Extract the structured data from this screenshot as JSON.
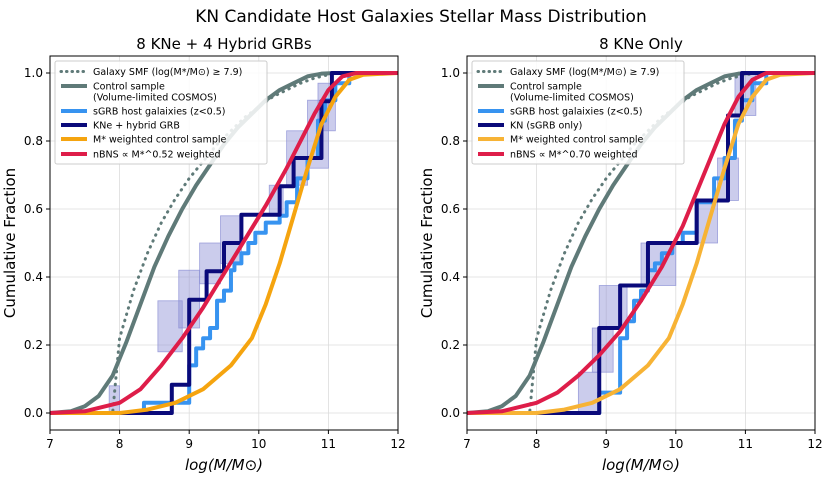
{
  "figure_title": "KN Candidate Host Galaxies Stellar Mass Distribution",
  "chart_data": [
    {
      "type": "line",
      "title": "8 KNe + 4 Hybrid GRBs",
      "xlabel": "log(M/M⊙)",
      "ylabel": "Cumulative Fraction",
      "xlim": [
        7,
        12
      ],
      "ylim": [
        -0.05,
        1.05
      ],
      "xticks": [
        "7",
        "8",
        "9",
        "10",
        "11",
        "12"
      ],
      "yticks": [
        "0.0",
        "0.2",
        "0.4",
        "0.6",
        "0.8",
        "1.0"
      ],
      "grid": true,
      "legend_position": "upper-left",
      "series": [
        {
          "name": "Galaxy SMF (log(M*/M⊙) ≥ 7.9)",
          "color": "#5f7a78",
          "style": "dotted",
          "kind": "line",
          "x": [
            7.9,
            8.0,
            8.2,
            8.4,
            8.6,
            8.8,
            9.0,
            9.2,
            9.4,
            9.6,
            9.8,
            10.0,
            10.2,
            10.4,
            10.6,
            10.8,
            11.0,
            11.2,
            12.0
          ],
          "y": [
            0.0,
            0.22,
            0.36,
            0.47,
            0.56,
            0.63,
            0.69,
            0.74,
            0.79,
            0.83,
            0.87,
            0.9,
            0.93,
            0.95,
            0.97,
            0.985,
            0.995,
            1.0,
            1.0
          ]
        },
        {
          "name": "Control sample (Volume-limited COSMOS)",
          "color": "#5f7a78",
          "style": "solid",
          "kind": "line",
          "x": [
            7.0,
            7.3,
            7.5,
            7.7,
            7.9,
            8.1,
            8.3,
            8.5,
            8.7,
            8.9,
            9.1,
            9.3,
            9.5,
            9.7,
            9.9,
            10.1,
            10.3,
            10.5,
            10.7,
            10.9,
            11.1,
            12.0
          ],
          "y": [
            0.0,
            0.005,
            0.02,
            0.05,
            0.11,
            0.21,
            0.32,
            0.43,
            0.52,
            0.6,
            0.67,
            0.73,
            0.79,
            0.84,
            0.88,
            0.92,
            0.95,
            0.97,
            0.99,
            0.998,
            1.0,
            1.0
          ]
        },
        {
          "name": "sGRB host galaixies (z<0.5)",
          "color": "#3793f0",
          "style": "solid",
          "kind": "step",
          "x": [
            8.0,
            8.35,
            8.8,
            9.0,
            9.1,
            9.2,
            9.3,
            9.4,
            9.5,
            9.6,
            9.65,
            9.75,
            9.85,
            9.95,
            10.1,
            10.3,
            10.4,
            10.55,
            10.7,
            10.85,
            10.95,
            11.1,
            11.3
          ],
          "y": [
            0.0,
            0.03,
            0.03,
            0.14,
            0.19,
            0.22,
            0.25,
            0.33,
            0.36,
            0.42,
            0.44,
            0.47,
            0.5,
            0.53,
            0.56,
            0.58,
            0.62,
            0.69,
            0.75,
            0.86,
            0.92,
            0.97,
            1.0
          ]
        },
        {
          "name": "KNe + hybrid GRB",
          "color": "#0a0a7a",
          "style": "solid",
          "kind": "step",
          "x": [
            8.0,
            8.75,
            9.0,
            9.25,
            9.5,
            9.75,
            10.3,
            10.5,
            10.9,
            11.05,
            11.3
          ],
          "y": [
            0.0,
            0.083,
            0.333,
            0.417,
            0.5,
            0.583,
            0.667,
            0.75,
            0.917,
            1.0,
            1.0
          ]
        },
        {
          "name": "M* weighted control sample",
          "color": "#f5a40f",
          "style": "solid",
          "kind": "line",
          "x": [
            8.0,
            8.4,
            8.8,
            9.2,
            9.6,
            9.9,
            10.1,
            10.3,
            10.5,
            10.7,
            10.9,
            11.1,
            11.3,
            11.5,
            12.0
          ],
          "y": [
            0.0,
            0.01,
            0.03,
            0.07,
            0.14,
            0.22,
            0.32,
            0.44,
            0.58,
            0.72,
            0.85,
            0.93,
            0.98,
            0.995,
            1.0
          ]
        },
        {
          "name": "nBNS ∝ M*^0.52 weighted",
          "color": "#de1d49",
          "style": "solid",
          "kind": "line",
          "x": [
            7.0,
            7.5,
            8.0,
            8.3,
            8.6,
            8.9,
            9.2,
            9.5,
            9.8,
            10.1,
            10.4,
            10.6,
            10.8,
            11.0,
            11.2,
            11.4,
            12.0
          ],
          "y": [
            0.0,
            0.005,
            0.03,
            0.07,
            0.14,
            0.22,
            0.31,
            0.41,
            0.51,
            0.61,
            0.72,
            0.8,
            0.88,
            0.95,
            0.99,
            1.0,
            1.0
          ]
        }
      ],
      "band": {
        "color": "#8b8fd4",
        "boxes": [
          [
            7.85,
            8.0,
            0.0,
            0.08
          ],
          [
            8.55,
            8.9,
            0.18,
            0.33
          ],
          [
            8.85,
            9.15,
            0.25,
            0.42
          ],
          [
            9.15,
            9.45,
            0.38,
            0.5
          ],
          [
            9.45,
            9.75,
            0.44,
            0.58
          ],
          [
            10.15,
            10.35,
            0.58,
            0.67
          ],
          [
            10.4,
            10.7,
            0.67,
            0.83
          ],
          [
            10.7,
            11.0,
            0.72,
            0.92
          ],
          [
            10.85,
            11.1,
            0.83,
            0.97
          ]
        ]
      }
    },
    {
      "type": "line",
      "title": "8 KNe Only",
      "xlabel": "log(M/M⊙)",
      "ylabel": "Cumulative Fraction",
      "xlim": [
        7,
        12
      ],
      "ylim": [
        -0.05,
        1.05
      ],
      "xticks": [
        "7",
        "8",
        "9",
        "10",
        "11",
        "12"
      ],
      "yticks": [
        "0.0",
        "0.2",
        "0.4",
        "0.6",
        "0.8",
        "1.0"
      ],
      "grid": true,
      "legend_position": "upper-left",
      "series": [
        {
          "name": "Galaxy SMF (log(M*/M⊙) ≥ 7.9)",
          "color": "#5f7a78",
          "style": "dotted",
          "kind": "line",
          "x": [
            7.9,
            8.0,
            8.2,
            8.4,
            8.6,
            8.8,
            9.0,
            9.2,
            9.4,
            9.6,
            9.8,
            10.0,
            10.2,
            10.4,
            10.6,
            10.8,
            11.0,
            11.2,
            12.0
          ],
          "y": [
            0.0,
            0.22,
            0.36,
            0.47,
            0.56,
            0.63,
            0.69,
            0.74,
            0.79,
            0.83,
            0.87,
            0.9,
            0.93,
            0.95,
            0.97,
            0.985,
            0.995,
            1.0,
            1.0
          ]
        },
        {
          "name": "Control sample (Volume-limited COSMOS)",
          "color": "#5f7a78",
          "style": "solid",
          "kind": "line",
          "x": [
            7.0,
            7.3,
            7.5,
            7.7,
            7.9,
            8.1,
            8.3,
            8.5,
            8.7,
            8.9,
            9.1,
            9.3,
            9.5,
            9.7,
            9.9,
            10.1,
            10.3,
            10.5,
            10.7,
            10.9,
            11.1,
            12.0
          ],
          "y": [
            0.0,
            0.005,
            0.02,
            0.05,
            0.11,
            0.21,
            0.32,
            0.43,
            0.52,
            0.6,
            0.67,
            0.73,
            0.79,
            0.84,
            0.88,
            0.92,
            0.95,
            0.97,
            0.99,
            0.998,
            1.0,
            1.0
          ]
        },
        {
          "name": "sGRB host galaixies (z<0.5)",
          "color": "#3793f0",
          "style": "solid",
          "kind": "step",
          "x": [
            8.7,
            8.9,
            9.2,
            9.3,
            9.4,
            9.5,
            9.6,
            9.7,
            9.8,
            9.95,
            10.1,
            10.3,
            10.55,
            10.7,
            10.85,
            10.95,
            11.1,
            11.3
          ],
          "y": [
            0.0,
            0.06,
            0.22,
            0.27,
            0.33,
            0.36,
            0.42,
            0.44,
            0.47,
            0.5,
            0.53,
            0.62,
            0.69,
            0.75,
            0.86,
            0.92,
            0.97,
            1.0
          ]
        },
        {
          "name": "KN (sGRB only)",
          "color": "#0a0a7a",
          "style": "solid",
          "kind": "step",
          "x": [
            8.7,
            8.9,
            9.2,
            9.6,
            10.3,
            10.75,
            10.95,
            11.3
          ],
          "y": [
            0.0,
            0.25,
            0.375,
            0.5,
            0.625,
            0.875,
            1.0,
            1.0
          ]
        },
        {
          "name": "M* weighted control sample",
          "color": "#f7b335",
          "style": "solid",
          "kind": "line",
          "x": [
            8.0,
            8.4,
            8.8,
            9.2,
            9.6,
            9.9,
            10.1,
            10.3,
            10.5,
            10.7,
            10.9,
            11.1,
            11.3,
            11.5,
            12.0
          ],
          "y": [
            0.0,
            0.01,
            0.03,
            0.07,
            0.14,
            0.22,
            0.32,
            0.44,
            0.58,
            0.72,
            0.85,
            0.93,
            0.98,
            0.995,
            1.0
          ]
        },
        {
          "name": "nBNS ∝ M*^0.70 weighted",
          "color": "#de1d49",
          "style": "solid",
          "kind": "line",
          "x": [
            7.0,
            7.5,
            8.0,
            8.3,
            8.6,
            8.9,
            9.2,
            9.5,
            9.8,
            10.1,
            10.3,
            10.5,
            10.7,
            10.9,
            11.1,
            11.3,
            12.0
          ],
          "y": [
            0.0,
            0.005,
            0.03,
            0.06,
            0.11,
            0.17,
            0.24,
            0.33,
            0.43,
            0.55,
            0.65,
            0.75,
            0.85,
            0.93,
            0.98,
            1.0,
            1.0
          ]
        }
      ],
      "band": {
        "color": "#8b8fd4",
        "boxes": [
          [
            8.6,
            8.9,
            0.0,
            0.12
          ],
          [
            8.8,
            9.1,
            0.12,
            0.25
          ],
          [
            8.9,
            9.3,
            0.25,
            0.375
          ],
          [
            9.5,
            10.0,
            0.375,
            0.5
          ],
          [
            10.3,
            10.6,
            0.5,
            0.625
          ],
          [
            10.6,
            10.9,
            0.625,
            0.75
          ],
          [
            10.85,
            11.15,
            0.875,
            1.0
          ]
        ]
      }
    }
  ]
}
